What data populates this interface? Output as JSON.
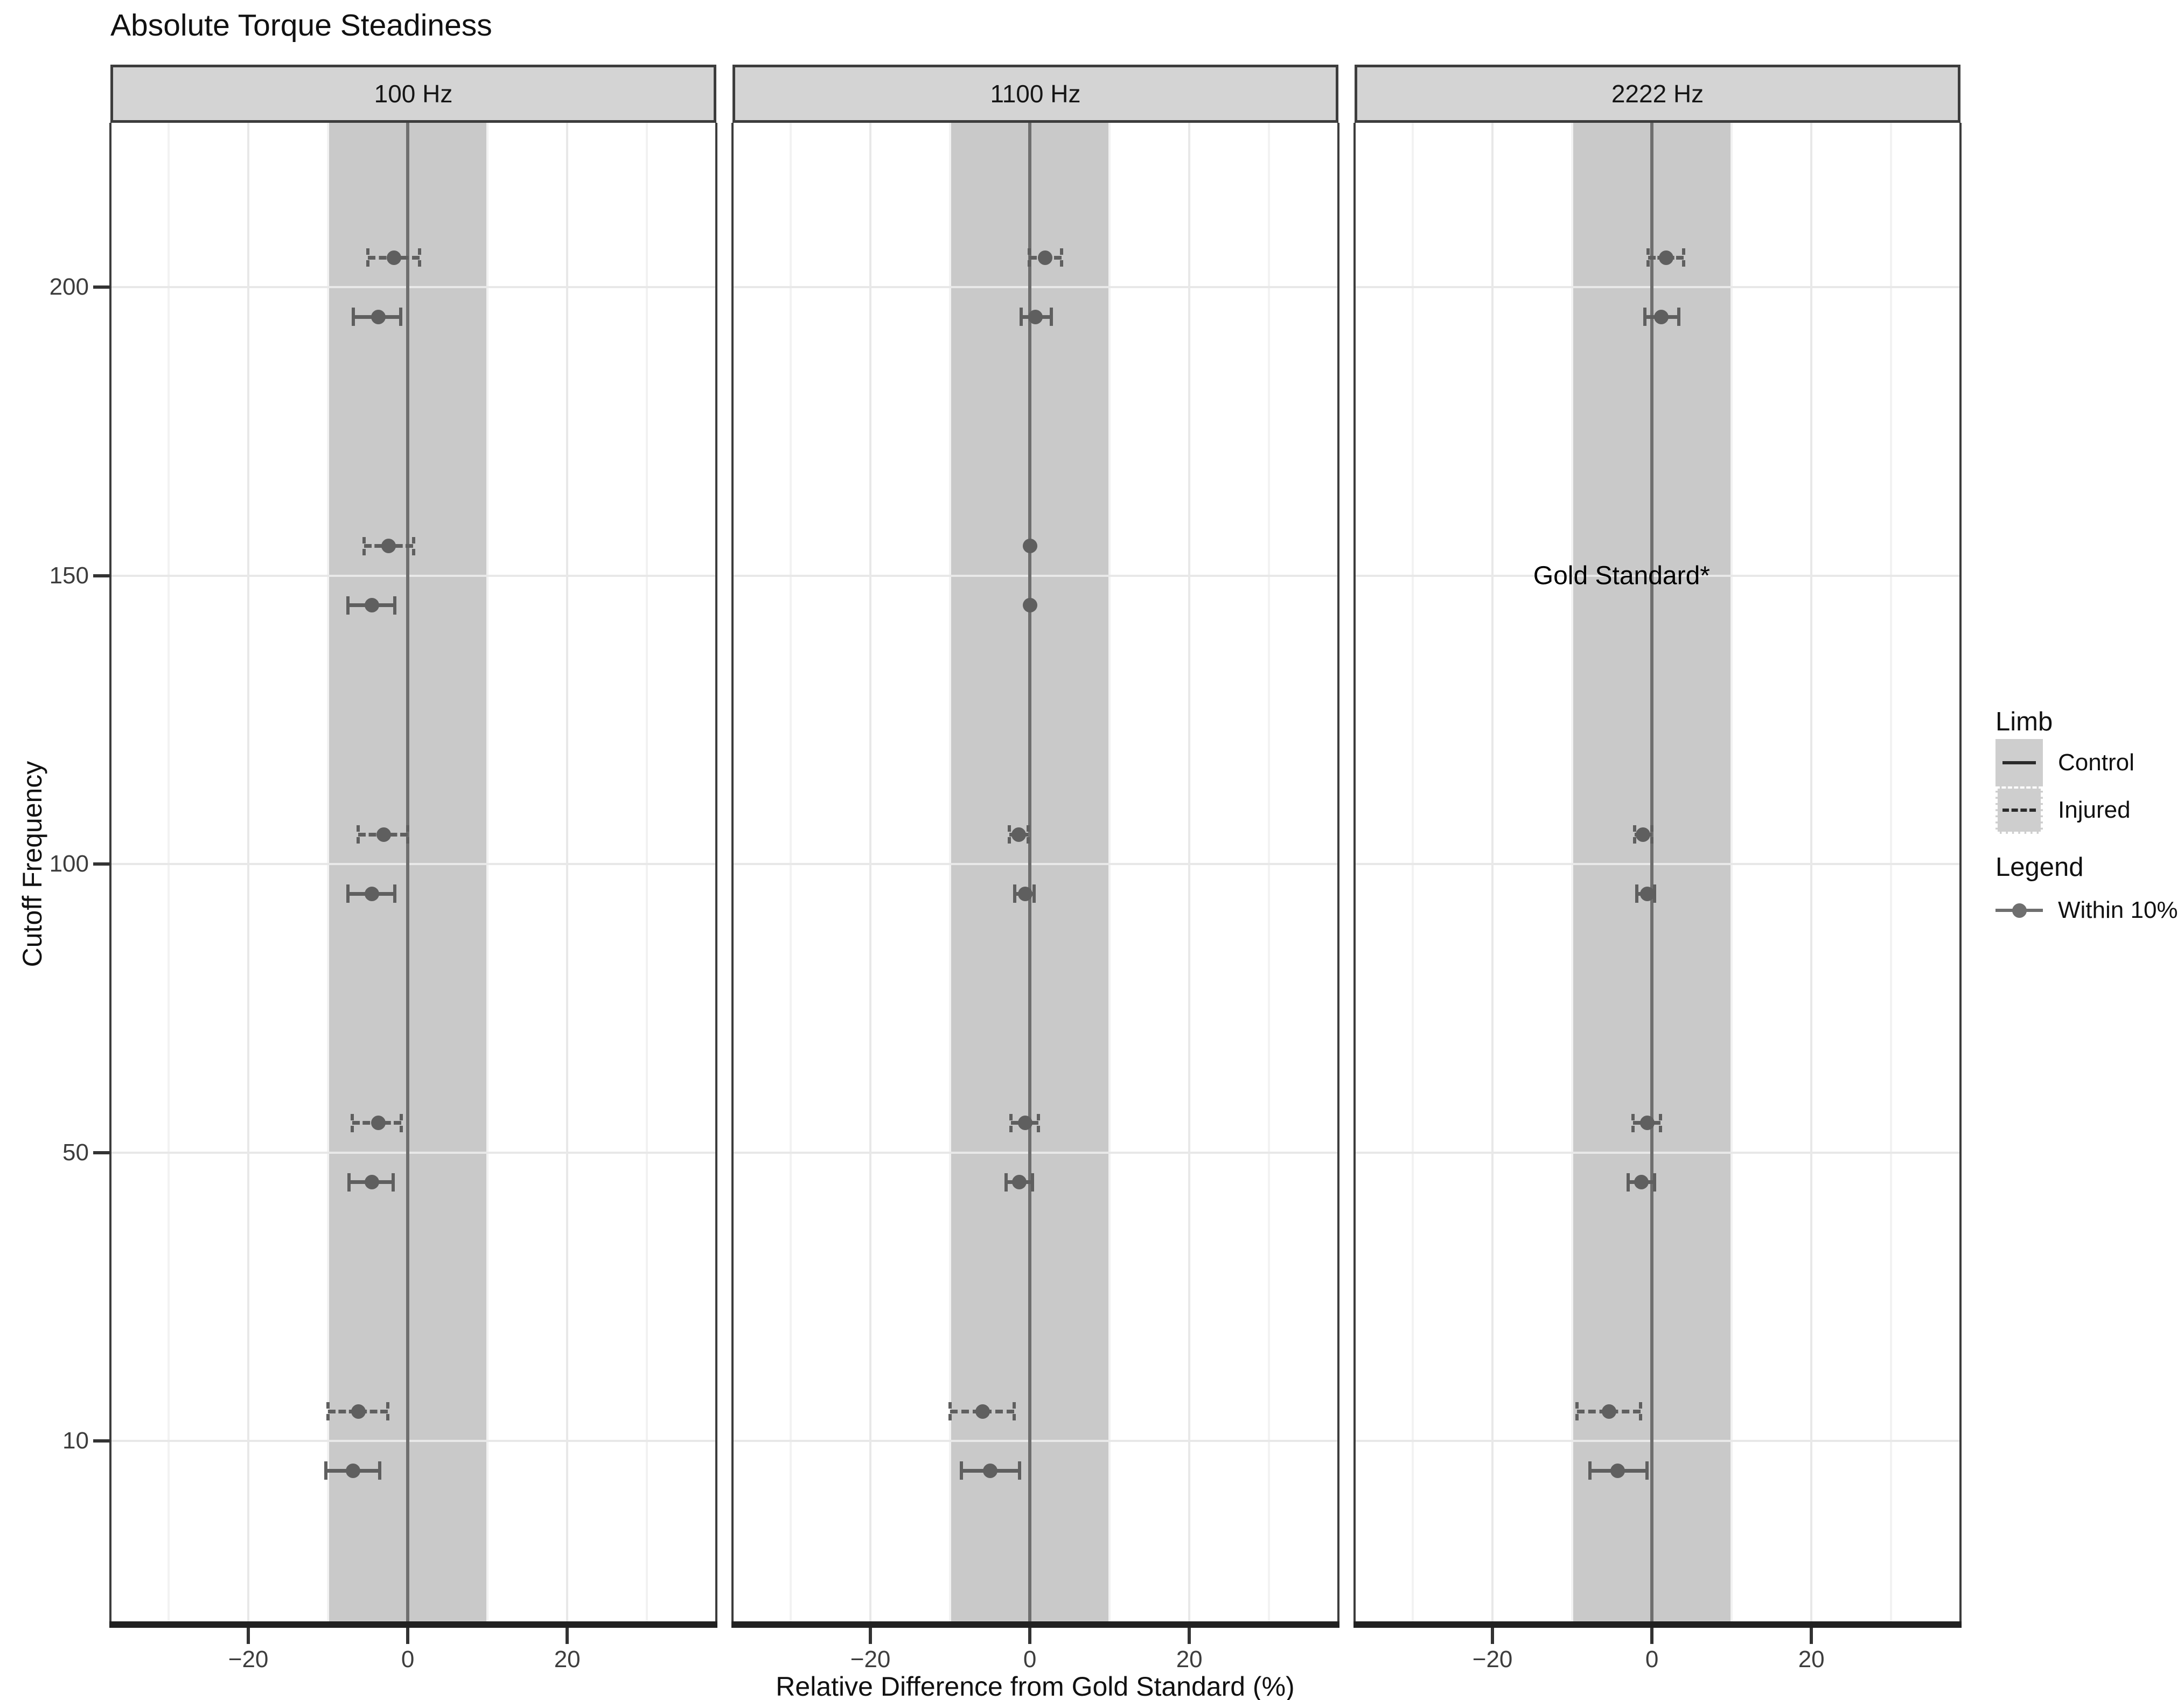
{
  "chart_data": {
    "type": "scatter",
    "title": "Absolute Torque Steadiness",
    "xlabel": "Relative Difference from Gold Standard (%)",
    "ylabel": "Cutoff Frequency",
    "x_range": [
      -37.3,
      38.7
    ],
    "x_ticks": [
      -20,
      0,
      20
    ],
    "x_minor_ticks": [
      -30,
      -10,
      10,
      30
    ],
    "y_categories": [
      "10",
      "50",
      "100",
      "150",
      "200"
    ],
    "band": {
      "from": -10,
      "to": 10,
      "label": "Within 10%",
      "color": "#c9c9c9"
    },
    "colors": {
      "point": "#5f5f5f",
      "zero_line": "#6f6f6f",
      "strip_bg": "#d4d4d4"
    },
    "facets": [
      {
        "label": "100 Hz",
        "points": [
          {
            "cutoff": "200",
            "limb": "Injured",
            "x": -1.7,
            "lo": -5.0,
            "hi": 1.5
          },
          {
            "cutoff": "200",
            "limb": "Control",
            "x": -3.7,
            "lo": -6.8,
            "hi": -0.9
          },
          {
            "cutoff": "150",
            "limb": "Injured",
            "x": -2.4,
            "lo": -5.5,
            "hi": 0.7
          },
          {
            "cutoff": "150",
            "limb": "Control",
            "x": -4.5,
            "lo": -7.5,
            "hi": -1.6
          },
          {
            "cutoff": "100",
            "limb": "Injured",
            "x": -3.0,
            "lo": -6.2,
            "hi": 0.0
          },
          {
            "cutoff": "100",
            "limb": "Control",
            "x": -4.5,
            "lo": -7.5,
            "hi": -1.6
          },
          {
            "cutoff": "50",
            "limb": "Injured",
            "x": -3.7,
            "lo": -7.0,
            "hi": -0.8
          },
          {
            "cutoff": "50",
            "limb": "Control",
            "x": -4.5,
            "lo": -7.4,
            "hi": -1.8
          },
          {
            "cutoff": "10",
            "limb": "Injured",
            "x": -6.2,
            "lo": -10.0,
            "hi": -2.5
          },
          {
            "cutoff": "10",
            "limb": "Control",
            "x": -6.9,
            "lo": -10.3,
            "hi": -3.5
          }
        ]
      },
      {
        "label": "1100 Hz",
        "points": [
          {
            "cutoff": "200",
            "limb": "Injured",
            "x": 1.9,
            "lo": -0.1,
            "hi": 4.0
          },
          {
            "cutoff": "200",
            "limb": "Control",
            "x": 0.7,
            "lo": -1.1,
            "hi": 2.7
          },
          {
            "cutoff": "150",
            "limb": "Injured",
            "x": 0.0
          },
          {
            "cutoff": "150",
            "limb": "Control",
            "x": 0.0
          },
          {
            "cutoff": "100",
            "limb": "Injured",
            "x": -1.4,
            "lo": -2.6,
            "hi": -0.2
          },
          {
            "cutoff": "100",
            "limb": "Control",
            "x": -0.6,
            "lo": -1.9,
            "hi": 0.5
          },
          {
            "cutoff": "50",
            "limb": "Injured",
            "x": -0.6,
            "lo": -2.4,
            "hi": 1.1
          },
          {
            "cutoff": "50",
            "limb": "Control",
            "x": -1.3,
            "lo": -3.0,
            "hi": 0.3
          },
          {
            "cutoff": "10",
            "limb": "Injured",
            "x": -5.9,
            "lo": -10.0,
            "hi": -2.0
          },
          {
            "cutoff": "10",
            "limb": "Control",
            "x": -5.0,
            "lo": -8.6,
            "hi": -1.3
          }
        ]
      },
      {
        "label": "2222 Hz",
        "points": [
          {
            "cutoff": "200",
            "limb": "Injured",
            "x": 1.8,
            "lo": -0.5,
            "hi": 4.0
          },
          {
            "cutoff": "200",
            "limb": "Control",
            "x": 1.2,
            "lo": -0.9,
            "hi": 3.4
          },
          {
            "cutoff": "100",
            "limb": "Injured",
            "x": -1.1,
            "lo": -2.2,
            "hi": 0.0
          },
          {
            "cutoff": "100",
            "limb": "Control",
            "x": -0.6,
            "lo": -1.9,
            "hi": 0.3
          },
          {
            "cutoff": "50",
            "limb": "Injured",
            "x": -0.6,
            "lo": -2.4,
            "hi": 1.1
          },
          {
            "cutoff": "50",
            "limb": "Control",
            "x": -1.3,
            "lo": -3.0,
            "hi": 0.3
          },
          {
            "cutoff": "10",
            "limb": "Injured",
            "x": -5.4,
            "lo": -9.4,
            "hi": -1.4
          },
          {
            "cutoff": "10",
            "limb": "Control",
            "x": -4.3,
            "lo": -7.8,
            "hi": -0.6
          }
        ],
        "annotation": {
          "cutoff": "150",
          "x": -3.8,
          "text": "Gold Standard*"
        }
      }
    ]
  },
  "legend": {
    "limb_title": "Limb",
    "limb_items": [
      {
        "label": "Control",
        "style": "solid"
      },
      {
        "label": "Injured",
        "style": "dashed"
      }
    ],
    "legend_title": "Legend",
    "legend_items": [
      {
        "label": "Within 10%"
      }
    ]
  }
}
